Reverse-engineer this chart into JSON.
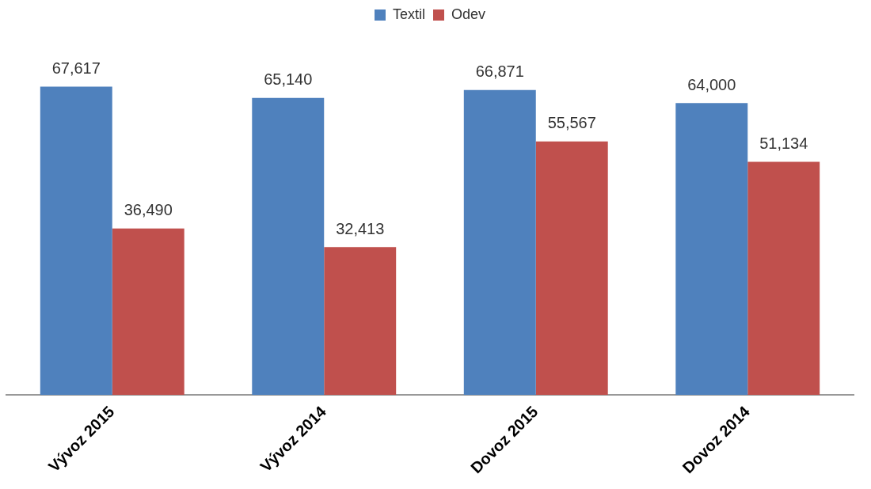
{
  "chart_data": {
    "type": "bar",
    "categories": [
      "Vývoz 2015",
      "Vývoz 2014",
      "Dovoz 2015",
      "Dovoz 2014"
    ],
    "series": [
      {
        "name": "Textil",
        "color": "#4f81bd",
        "values": [
          67617,
          65140,
          66871,
          64000
        ],
        "value_labels": [
          "67,617",
          "65,140",
          "66,871",
          "64,000"
        ]
      },
      {
        "name": "Odev",
        "color": "#c0504d",
        "values": [
          36490,
          32413,
          55567,
          51134
        ],
        "value_labels": [
          "36,490",
          "32,413",
          "55,567",
          "51,134"
        ]
      }
    ],
    "legend": "top",
    "grid": false,
    "tick_labels": "x"
  }
}
